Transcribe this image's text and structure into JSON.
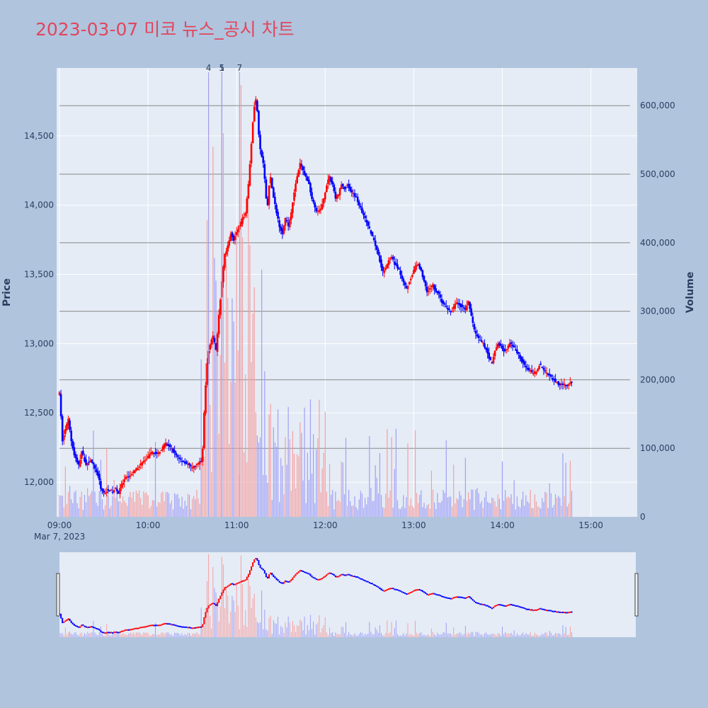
{
  "title": "2023-03-07 미코 뉴스_공시 차트",
  "chart_data": {
    "type": "candlestick",
    "title": "2023-03-07 미코 뉴스_공시 차트",
    "ylabel": "Price",
    "y2label": "Volume",
    "x_date_label": "Mar 7, 2023",
    "x_range": [
      "09:00",
      "15:30"
    ],
    "ylim": [
      11750,
      14990
    ],
    "y2lim": [
      0,
      655000
    ],
    "price_ticks": [
      "12,000",
      "12,500",
      "13,000",
      "13,500",
      "14,000",
      "14,500"
    ],
    "price_tick_values": [
      12000,
      12500,
      13000,
      13500,
      14000,
      14500
    ],
    "volume_ticks": [
      "0",
      "100,000",
      "200,000",
      "300,000",
      "400,000",
      "500,000",
      "600,000"
    ],
    "volume_tick_values": [
      0,
      100000,
      200000,
      300000,
      400000,
      500000,
      600000
    ],
    "x_ticks": [
      "09:00",
      "10:00",
      "11:00",
      "12:00",
      "13:00",
      "14:00",
      "15:00"
    ],
    "x_tick_minutes": [
      0,
      60,
      120,
      180,
      240,
      300,
      360
    ],
    "annotations": [
      {
        "label": "4",
        "time": "10:41"
      },
      {
        "label": "1",
        "time": "10:50"
      },
      {
        "label": "5",
        "time": "10:50"
      },
      {
        "label": "7",
        "time": "11:02"
      }
    ],
    "price_path": [
      [
        0,
        12640
      ],
      [
        2,
        12300
      ],
      [
        4,
        12380
      ],
      [
        6,
        12450
      ],
      [
        8,
        12300
      ],
      [
        10,
        12200
      ],
      [
        13,
        12120
      ],
      [
        15,
        12220
      ],
      [
        18,
        12130
      ],
      [
        21,
        12160
      ],
      [
        24,
        12100
      ],
      [
        26,
        12050
      ],
      [
        28,
        11960
      ],
      [
        30,
        11920
      ],
      [
        33,
        11950
      ],
      [
        36,
        11930
      ],
      [
        38,
        11960
      ],
      [
        40,
        11920
      ],
      [
        42,
        11980
      ],
      [
        45,
        12030
      ],
      [
        48,
        12050
      ],
      [
        51,
        12080
      ],
      [
        54,
        12120
      ],
      [
        57,
        12150
      ],
      [
        60,
        12180
      ],
      [
        63,
        12220
      ],
      [
        66,
        12200
      ],
      [
        69,
        12240
      ],
      [
        72,
        12280
      ],
      [
        75,
        12250
      ],
      [
        78,
        12210
      ],
      [
        81,
        12170
      ],
      [
        84,
        12150
      ],
      [
        87,
        12130
      ],
      [
        90,
        12100
      ],
      [
        93,
        12130
      ],
      [
        96,
        12150
      ],
      [
        97,
        12250
      ],
      [
        98,
        12500
      ],
      [
        99,
        12700
      ],
      [
        100,
        12850
      ],
      [
        101,
        12950
      ],
      [
        102,
        13000
      ],
      [
        104,
        13050
      ],
      [
        106,
        12950
      ],
      [
        108,
        13200
      ],
      [
        110,
        13450
      ],
      [
        112,
        13650
      ],
      [
        114,
        13700
      ],
      [
        116,
        13800
      ],
      [
        118,
        13750
      ],
      [
        120,
        13800
      ],
      [
        122,
        13850
      ],
      [
        124,
        13900
      ],
      [
        126,
        13950
      ],
      [
        127,
        14050
      ],
      [
        128,
        14150
      ],
      [
        129,
        14300
      ],
      [
        130,
        14450
      ],
      [
        131,
        14600
      ],
      [
        132,
        14720
      ],
      [
        133,
        14760
      ],
      [
        134,
        14680
      ],
      [
        135,
        14500
      ],
      [
        136,
        14400
      ],
      [
        137,
        14350
      ],
      [
        138,
        14300
      ],
      [
        139,
        14180
      ],
      [
        140,
        14050
      ],
      [
        141,
        14000
      ],
      [
        142,
        14150
      ],
      [
        143,
        14200
      ],
      [
        145,
        14050
      ],
      [
        147,
        13950
      ],
      [
        149,
        13850
      ],
      [
        151,
        13800
      ],
      [
        153,
        13900
      ],
      [
        155,
        13850
      ],
      [
        157,
        13950
      ],
      [
        159,
        14100
      ],
      [
        161,
        14200
      ],
      [
        163,
        14300
      ],
      [
        165,
        14250
      ],
      [
        167,
        14200
      ],
      [
        169,
        14150
      ],
      [
        171,
        14050
      ],
      [
        173,
        13980
      ],
      [
        175,
        13950
      ],
      [
        177,
        13970
      ],
      [
        179,
        14050
      ],
      [
        181,
        14150
      ],
      [
        183,
        14200
      ],
      [
        185,
        14150
      ],
      [
        187,
        14050
      ],
      [
        189,
        14080
      ],
      [
        191,
        14150
      ],
      [
        193,
        14120
      ],
      [
        195,
        14150
      ],
      [
        197,
        14100
      ],
      [
        199,
        14080
      ],
      [
        201,
        14060
      ],
      [
        203,
        14000
      ],
      [
        205,
        13950
      ],
      [
        207,
        13900
      ],
      [
        209,
        13850
      ],
      [
        211,
        13800
      ],
      [
        213,
        13750
      ],
      [
        215,
        13680
      ],
      [
        217,
        13600
      ],
      [
        219,
        13520
      ],
      [
        221,
        13550
      ],
      [
        223,
        13600
      ],
      [
        225,
        13620
      ],
      [
        227,
        13580
      ],
      [
        229,
        13550
      ],
      [
        231,
        13500
      ],
      [
        233,
        13450
      ],
      [
        235,
        13400
      ],
      [
        237,
        13450
      ],
      [
        239,
        13500
      ],
      [
        241,
        13550
      ],
      [
        243,
        13580
      ],
      [
        245,
        13520
      ],
      [
        247,
        13450
      ],
      [
        249,
        13380
      ],
      [
        251,
        13400
      ],
      [
        253,
        13420
      ],
      [
        255,
        13380
      ],
      [
        257,
        13360
      ],
      [
        259,
        13300
      ],
      [
        261,
        13280
      ],
      [
        263,
        13250
      ],
      [
        265,
        13230
      ],
      [
        267,
        13260
      ],
      [
        269,
        13300
      ],
      [
        271,
        13280
      ],
      [
        273,
        13260
      ],
      [
        275,
        13250
      ],
      [
        277,
        13300
      ],
      [
        279,
        13200
      ],
      [
        281,
        13100
      ],
      [
        283,
        13050
      ],
      [
        285,
        13020
      ],
      [
        287,
        13000
      ],
      [
        289,
        12960
      ],
      [
        291,
        12900
      ],
      [
        293,
        12850
      ],
      [
        295,
        12950
      ],
      [
        297,
        13000
      ],
      [
        299,
        12980
      ],
      [
        301,
        12950
      ],
      [
        303,
        12960
      ],
      [
        305,
        13000
      ],
      [
        307,
        12980
      ],
      [
        309,
        12950
      ],
      [
        311,
        12920
      ],
      [
        313,
        12880
      ],
      [
        315,
        12850
      ],
      [
        317,
        12820
      ],
      [
        319,
        12800
      ],
      [
        321,
        12780
      ],
      [
        323,
        12800
      ],
      [
        325,
        12850
      ],
      [
        327,
        12830
      ],
      [
        329,
        12800
      ],
      [
        331,
        12780
      ],
      [
        333,
        12760
      ],
      [
        335,
        12740
      ],
      [
        337,
        12720
      ],
      [
        339,
        12700
      ],
      [
        341,
        12710
      ],
      [
        343,
        12700
      ],
      [
        345,
        12710
      ],
      [
        347,
        12720
      ]
    ],
    "legend": "none",
    "grid": true,
    "colors": {
      "up": "#ff0000",
      "down": "#0000ff",
      "up_volume": "#f5a0a0",
      "down_volume": "#a0a0f5",
      "plot_bg": "#e5ecf6",
      "page_bg": "#b0c4de",
      "title": "#e0475e",
      "grid": "#ffffff",
      "volume_grid": "#888888"
    }
  }
}
